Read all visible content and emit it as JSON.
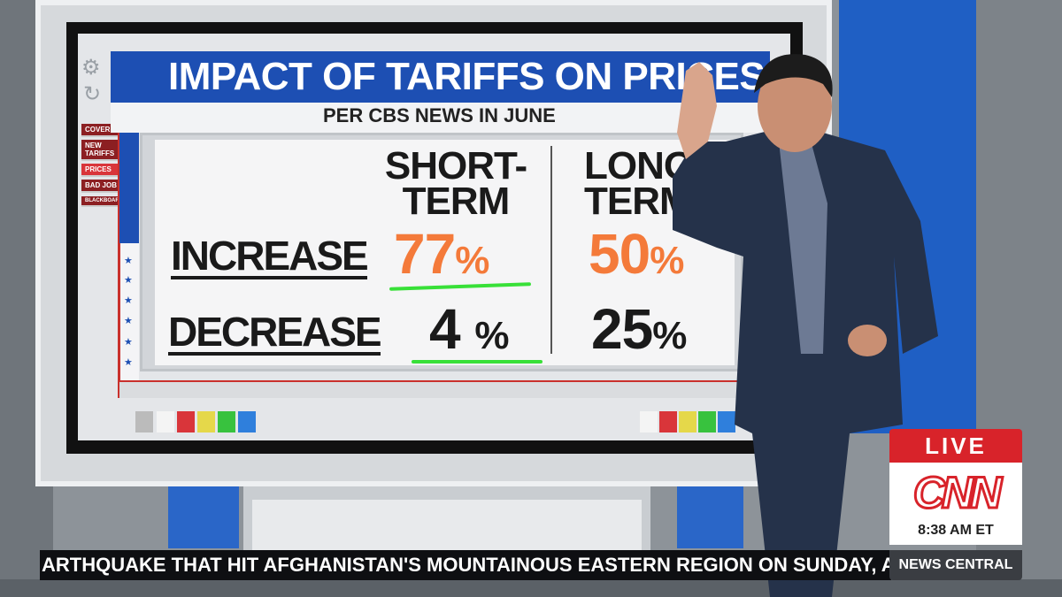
{
  "graphic": {
    "title": "IMPACT OF TARIFFS ON PRICES",
    "subtitle": "PER CBS NEWS IN JUNE",
    "nav_items": [
      "COVER",
      "NEW TARIFFS",
      "PRICES",
      "BAD JOB",
      "BLACKBOARD"
    ],
    "active_nav": "PRICES",
    "columns": [
      "SHORT-TERM",
      "LONG-TERM"
    ],
    "rows": [
      {
        "label": "INCREASE",
        "short_term": "77",
        "long_term": "50",
        "unit": "%",
        "color": "#f47a3a"
      },
      {
        "label": "DECREASE",
        "short_term": "4",
        "long_term": "25",
        "unit": "%",
        "color": "#1a1a1a"
      }
    ],
    "highlight_color": "#38e038"
  },
  "bug": {
    "live": "LIVE",
    "logo": "CNN",
    "time": "8:38 AM ET",
    "show": "NEWS CENTRAL"
  },
  "ticker": {
    "text": "ARTHQUAKE THAT HIT AFGHANISTAN'S MOUNTAINOUS EASTERN REGION ON SUNDAY, A"
  },
  "colors": {
    "brand_red": "#d8232a",
    "title_blue": "#1d4fb3"
  }
}
